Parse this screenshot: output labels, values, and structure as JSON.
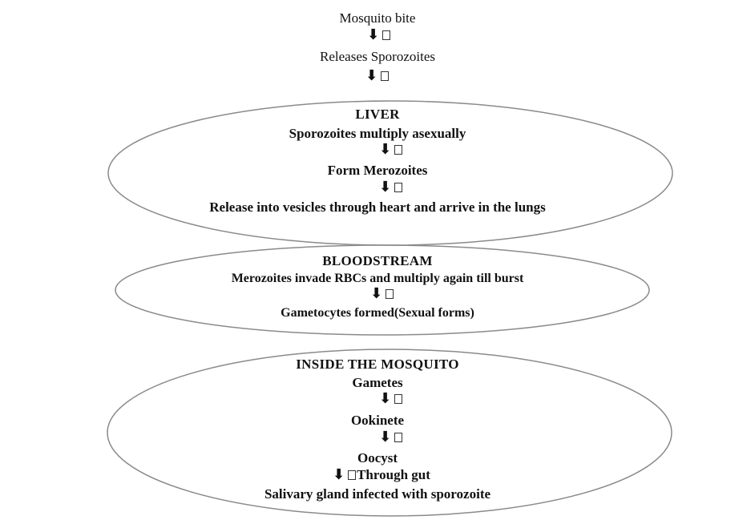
{
  "top": {
    "step1": "Mosquito bite",
    "step2": "Releases Sporozoites"
  },
  "liver": {
    "heading": "LIVER",
    "step1": "Sporozoites multiply asexually",
    "step2": "Form Merozoites",
    "step3": "Release into vesicles through heart and arrive in the lungs"
  },
  "bloodstream": {
    "heading": "BLOODSTREAM",
    "step1": "Merozoites invade RBCs and multiply again till burst",
    "step2": "Gametocytes formed(Sexual forms)"
  },
  "mosquito": {
    "heading": "INSIDE THE MOSQUITO",
    "step1": "Gametes",
    "step2": "Ookinete",
    "step3": "Oocyst",
    "arrow_note": "Through gut",
    "step4": "Salivary gland infected with sporozoite"
  },
  "arrow_symbol": "⬇",
  "colors": {
    "ellipse_stroke": "#8a8a8a",
    "text": "#111111"
  }
}
